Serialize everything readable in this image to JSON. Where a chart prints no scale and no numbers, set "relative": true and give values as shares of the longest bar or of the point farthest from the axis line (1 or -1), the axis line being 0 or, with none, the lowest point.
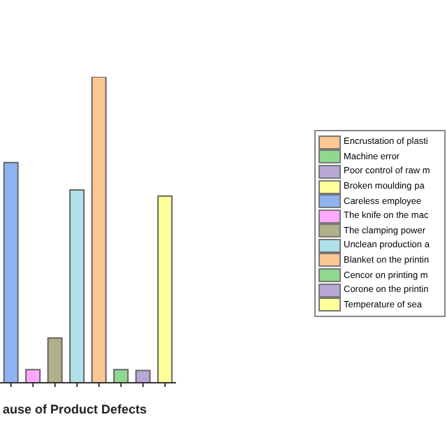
{
  "chart_data": {
    "type": "bar",
    "stacked": true,
    "relative": true,
    "xlabel": "ause of Product Defects",
    "categories": [
      null,
      null,
      null,
      null,
      null,
      null,
      null,
      null
    ],
    "legend": "right",
    "series": [
      {
        "name": "Encrustation of plasti",
        "color": "#fdc793",
        "values": [
          null,
          null,
          null,
          null,
          null,
          null,
          null,
          null
        ]
      },
      {
        "name": "Machine error",
        "color": "#90d890",
        "values": [
          null,
          null,
          null,
          null,
          null,
          null,
          null,
          null
        ]
      },
      {
        "name": "Poor control of raw m",
        "color": "#b8a8d8",
        "values": [
          null,
          null,
          null,
          null,
          null,
          null,
          null,
          null
        ]
      },
      {
        "name": "Broken moulding pa",
        "color": "#ffff99",
        "values": [
          null,
          null,
          null,
          null,
          null,
          null,
          null,
          null
        ]
      },
      {
        "name": "Careless employee",
        "color": "#8fb3f0",
        "values": [
          0.72,
          null,
          null,
          null,
          null,
          null,
          null,
          null
        ]
      },
      {
        "name": "The knife on the mac",
        "color": "#ffa8ff",
        "values": [
          null,
          0.043,
          null,
          null,
          null,
          null,
          null,
          null
        ]
      },
      {
        "name": "The clamping power",
        "color": "#b0b08a",
        "values": [
          null,
          null,
          0.146,
          null,
          null,
          null,
          null,
          null
        ]
      },
      {
        "name": "Unclean production a",
        "color": "#b0e0e8",
        "values": [
          null,
          null,
          null,
          0.63,
          null,
          null,
          null,
          null
        ]
      },
      {
        "name": "Blanket on the printin",
        "color": "#fdc793",
        "values": [
          null,
          null,
          null,
          null,
          1,
          null,
          null,
          null
        ]
      },
      {
        "name": "Cencor on printing m",
        "color": "#90d890",
        "values": [
          null,
          null,
          null,
          null,
          null,
          0.043,
          null,
          null
        ]
      },
      {
        "name": "Corone on the printin",
        "color": "#b8a8d8",
        "values": [
          null,
          null,
          null,
          null,
          null,
          null,
          0.04,
          null
        ]
      },
      {
        "name": "Temperature of sea",
        "color": "#ffff99",
        "values": [
          null,
          null,
          null,
          null,
          null,
          null,
          null,
          0.61
        ]
      }
    ]
  }
}
